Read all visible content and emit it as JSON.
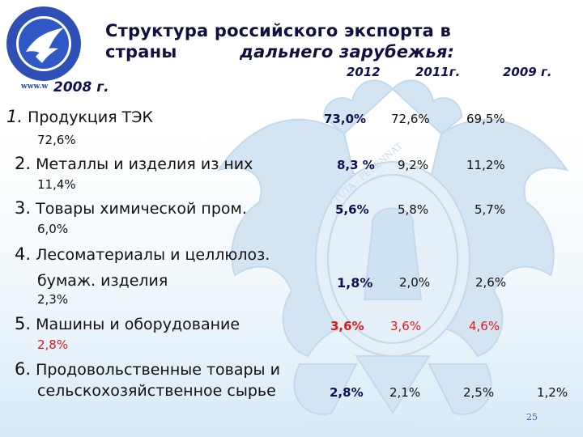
{
  "logo": {
    "url": "www.w"
  },
  "title": {
    "line1": "Структура российского экспорта в",
    "line2a": "страны",
    "line2b": "дальнего зарубежья:"
  },
  "years": [
    "2012",
    "2011г.",
    "2009 г.",
    "2008 г."
  ],
  "rows": [
    {
      "num": "1.",
      "label": "Продукция ТЭК",
      "v2012": "73,0%",
      "v2011": "72,6%",
      "v2009": "69,5%",
      "v2008": "72,6%"
    },
    {
      "num": "2.",
      "label": "Металлы и изделия из них",
      "v2012": "8,3 %",
      "v2011": "9,2%",
      "v2009": "11,2%",
      "v2008": "11,4%"
    },
    {
      "num": "3.",
      "label": "Товары химической пром.",
      "v2012": "5,6%",
      "v2011": "5,8%",
      "v2009": "5,7%",
      "v2008": "6,0%"
    },
    {
      "num": "4.",
      "label": "Лесоматериалы и целлюлоз.",
      "label2": "бумаж. изделия",
      "v2012": "1,8%",
      "v2011": "2,0%",
      "v2009": "2,6%",
      "v2008": "2,3%"
    },
    {
      "num": "5.",
      "label": "Машины и оборудование",
      "v2012": "3,6%",
      "v2011": "3,6%",
      "v2009": "4,6%",
      "v2008": "2,8%"
    },
    {
      "num": "6.",
      "label": "Продовольственные товары и",
      "label2": "сельскохозяйственное сырье",
      "v2012": "2,8%",
      "v2011": "2,1%",
      "v2009": "2,5%",
      "v2008": "1,2%"
    }
  ],
  "page_number": "25",
  "colors": {
    "title": "#101040",
    "highlight": "#e01818",
    "emblem": "#c9def0"
  },
  "icons": {
    "logo": "dove-circle-logo",
    "background": "double-headed-eagle-emblem"
  }
}
